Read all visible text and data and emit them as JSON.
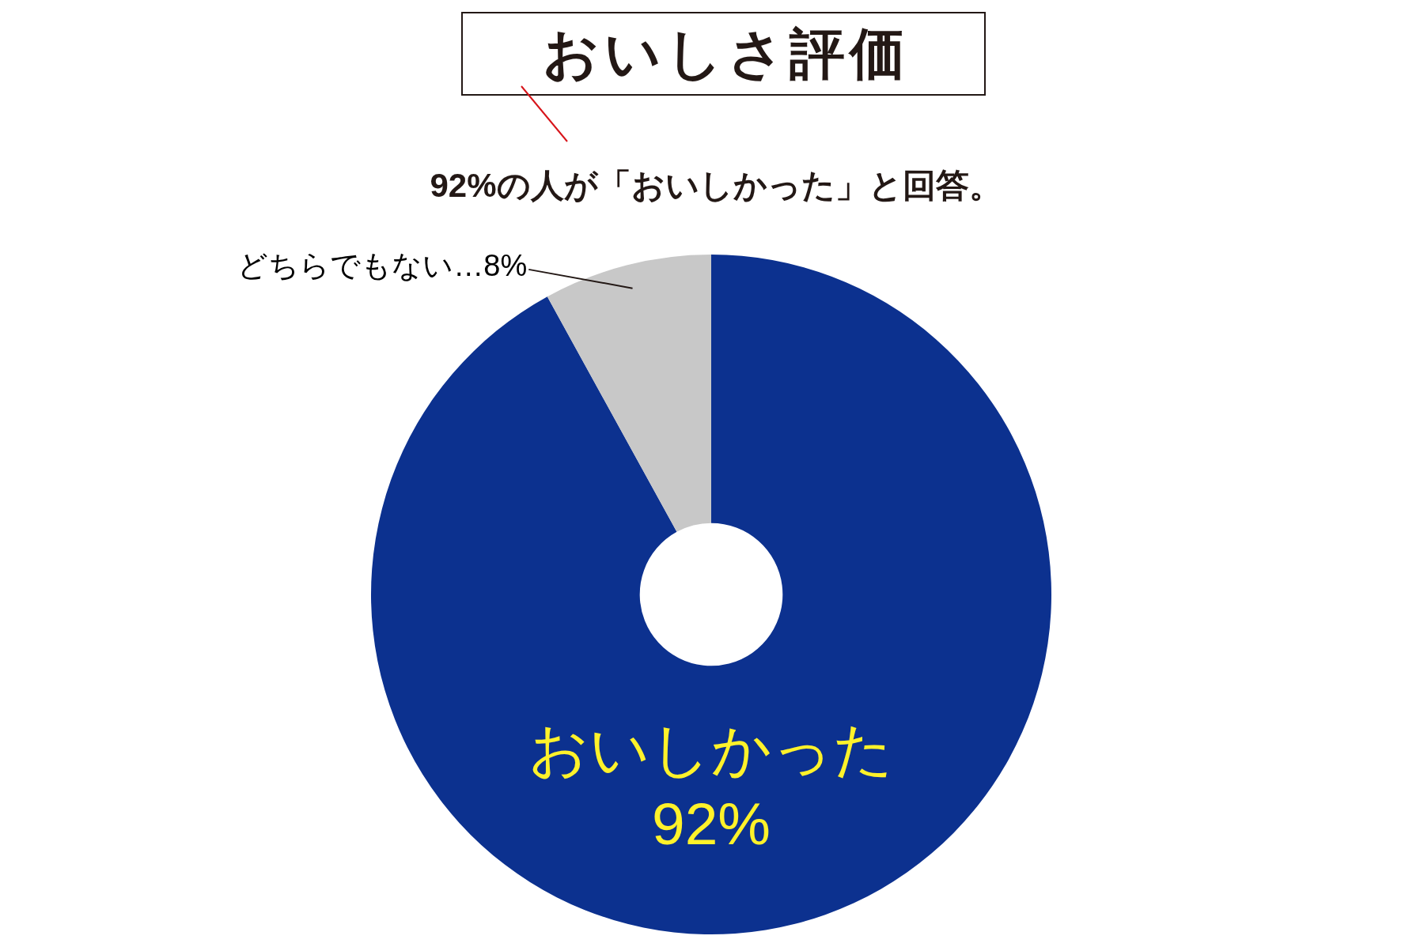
{
  "chart_data": {
    "type": "donut",
    "title": "おいしさ評価",
    "subtitle": "92%の人が「おいしかった」と回答。",
    "categories": [
      "おいしかった",
      "どちらでもない"
    ],
    "values": [
      92,
      8
    ],
    "colors": [
      "#0c318f",
      "#c8c8c8"
    ],
    "value_labels": [
      "92%",
      "…8%"
    ]
  }
}
